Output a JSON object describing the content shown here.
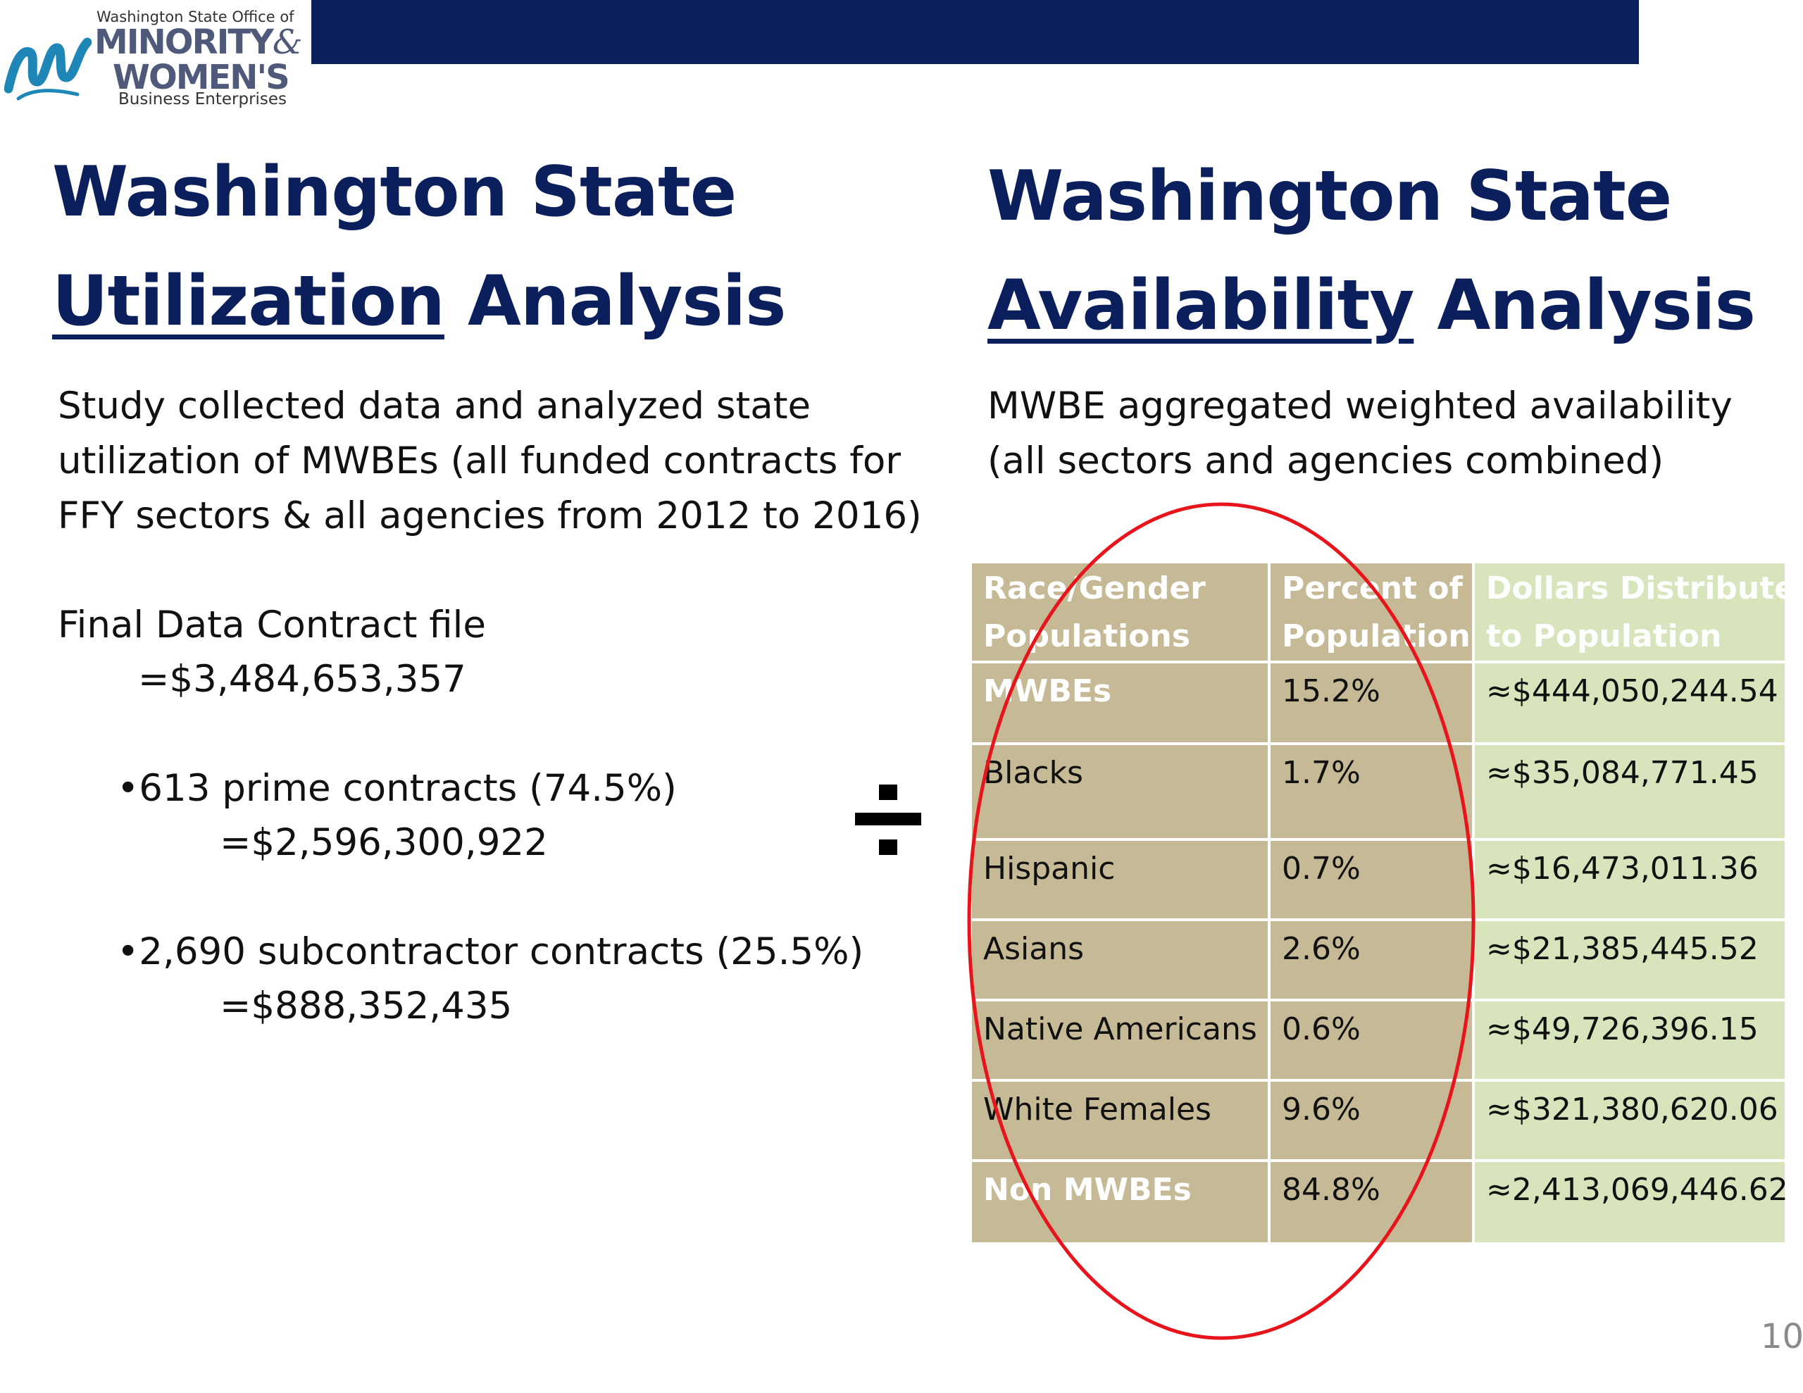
{
  "logo": {
    "office": "Washington State Office of",
    "line1": "MINORITY",
    "amp": "&",
    "line2": "WOMEN'S",
    "line3": "Business Enterprises"
  },
  "left": {
    "heading_line1": "Washington State",
    "heading_underlined": "Utilization",
    "heading_rest": " Analysis",
    "paragraph": [
      "Study collected data and analyzed state",
      "utilization of MWBEs (all funded contracts for",
      "FFY sectors & all agencies from 2012 to 2016)"
    ],
    "final_label": "Final Data Contract file",
    "final_value": "=$3,484,653,357",
    "bullets": [
      {
        "label": "•613 prime contracts (74.5%)",
        "value": "=$2,596,300,922"
      },
      {
        "label": "•2,690 subcontractor contracts (25.5%)",
        "value": "=$888,352,435"
      }
    ]
  },
  "divide_sign": "÷",
  "right": {
    "heading_line1": "Washington State",
    "heading_underlined": "Availability",
    "heading_rest": " Analysis",
    "paragraph": [
      "MWBE aggregated weighted availability",
      "(all sectors and agencies combined)"
    ]
  },
  "table": {
    "headers": [
      [
        "Race/Gender",
        "Populations"
      ],
      [
        "Percent of",
        "Population"
      ],
      [
        "Dollars Distributed",
        "to Population"
      ]
    ],
    "rows": [
      [
        "MWBEs",
        "15.2%",
        "≈$444,050,244.54"
      ],
      [
        "Blacks",
        "1.7%",
        "≈$35,084,771.45"
      ],
      [
        "Hispanic",
        "0.7%",
        "≈$16,473,011.36"
      ],
      [
        "Asians",
        "2.6%",
        "≈$21,385,445.52"
      ],
      [
        "Native Americans",
        "0.6%",
        "≈$49,726,396.15"
      ],
      [
        "White Females",
        "9.6%",
        "≈$321,380,620.06"
      ],
      [
        "Non MWBEs",
        "84.8%",
        "≈2,413,069,446.62"
      ]
    ]
  },
  "colors": {
    "navy": "#0b1f5c",
    "tan_cell": "#c6ba96",
    "green_cell": "#d7e4bc",
    "highlight_ellipse": "#e8141c"
  },
  "slide_number": "10"
}
